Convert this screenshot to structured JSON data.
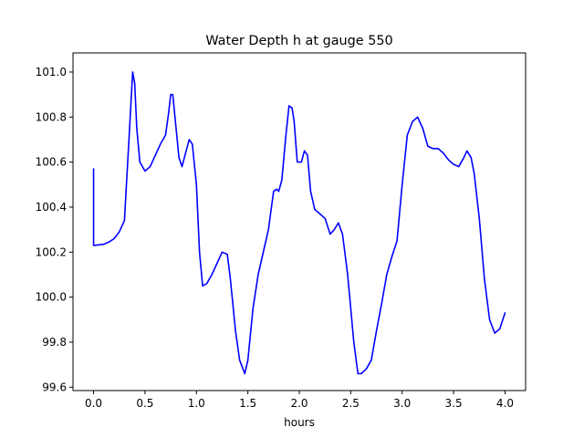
{
  "chart_data": {
    "type": "line",
    "title": "Water Depth h at gauge 550",
    "xlabel": "hours",
    "ylabel": "",
    "xlim": [
      -0.2,
      4.2
    ],
    "ylim": [
      99.585,
      101.085
    ],
    "grid": false,
    "legend": "none",
    "x_ticks": [
      0.0,
      0.5,
      1.0,
      1.5,
      2.0,
      2.5,
      3.0,
      3.5,
      4.0
    ],
    "x_tick_labels": [
      "0.0",
      "0.5",
      "1.0",
      "1.5",
      "2.0",
      "2.5",
      "3.0",
      "3.5",
      "4.0"
    ],
    "y_ticks": [
      99.6,
      99.8,
      100.0,
      100.2,
      100.4,
      100.6,
      100.8,
      101.0
    ],
    "y_tick_labels": [
      "99.6",
      "99.8",
      "100.0",
      "100.2",
      "100.4",
      "100.6",
      "100.8",
      "101.0"
    ],
    "series": [
      {
        "color": "#0000ff",
        "x": [
          0.0,
          0.0,
          0.005,
          0.1,
          0.15,
          0.2,
          0.25,
          0.3,
          0.35,
          0.38,
          0.4,
          0.42,
          0.45,
          0.5,
          0.55,
          0.6,
          0.65,
          0.7,
          0.73,
          0.75,
          0.77,
          0.8,
          0.83,
          0.86,
          0.9,
          0.93,
          0.96,
          1.0,
          1.03,
          1.06,
          1.1,
          1.15,
          1.2,
          1.25,
          1.3,
          1.33,
          1.38,
          1.42,
          1.47,
          1.5,
          1.55,
          1.6,
          1.65,
          1.7,
          1.75,
          1.78,
          1.8,
          1.83,
          1.87,
          1.9,
          1.93,
          1.95,
          1.98,
          2.02,
          2.05,
          2.08,
          2.11,
          2.15,
          2.2,
          2.25,
          2.3,
          2.34,
          2.38,
          2.42,
          2.47,
          2.53,
          2.57,
          2.6,
          2.65,
          2.7,
          2.75,
          2.8,
          2.85,
          2.9,
          2.95,
          3.0,
          3.05,
          3.1,
          3.15,
          3.2,
          3.25,
          3.3,
          3.35,
          3.4,
          3.45,
          3.5,
          3.55,
          3.6,
          3.63,
          3.67,
          3.7,
          3.75,
          3.8,
          3.85,
          3.9,
          3.95,
          4.0
        ],
        "y": [
          100.57,
          100.23,
          100.23,
          100.235,
          100.245,
          100.26,
          100.29,
          100.34,
          100.75,
          101.0,
          100.95,
          100.75,
          100.6,
          100.56,
          100.58,
          100.63,
          100.68,
          100.72,
          100.82,
          100.9,
          100.9,
          100.76,
          100.62,
          100.58,
          100.65,
          100.7,
          100.68,
          100.5,
          100.2,
          100.05,
          100.06,
          100.1,
          100.15,
          100.2,
          100.19,
          100.08,
          99.85,
          99.72,
          99.66,
          99.72,
          99.95,
          100.1,
          100.2,
          100.3,
          100.47,
          100.48,
          100.47,
          100.52,
          100.72,
          100.85,
          100.84,
          100.78,
          100.6,
          100.6,
          100.65,
          100.63,
          100.47,
          100.39,
          100.37,
          100.35,
          100.28,
          100.3,
          100.33,
          100.28,
          100.1,
          99.8,
          99.66,
          99.66,
          99.68,
          99.72,
          99.85,
          99.97,
          100.1,
          100.18,
          100.25,
          100.5,
          100.72,
          100.78,
          100.8,
          100.75,
          100.67,
          100.66,
          100.66,
          100.64,
          100.61,
          100.59,
          100.58,
          100.62,
          100.65,
          100.62,
          100.55,
          100.35,
          100.08,
          99.9,
          99.84,
          99.86,
          99.93
        ]
      }
    ]
  }
}
